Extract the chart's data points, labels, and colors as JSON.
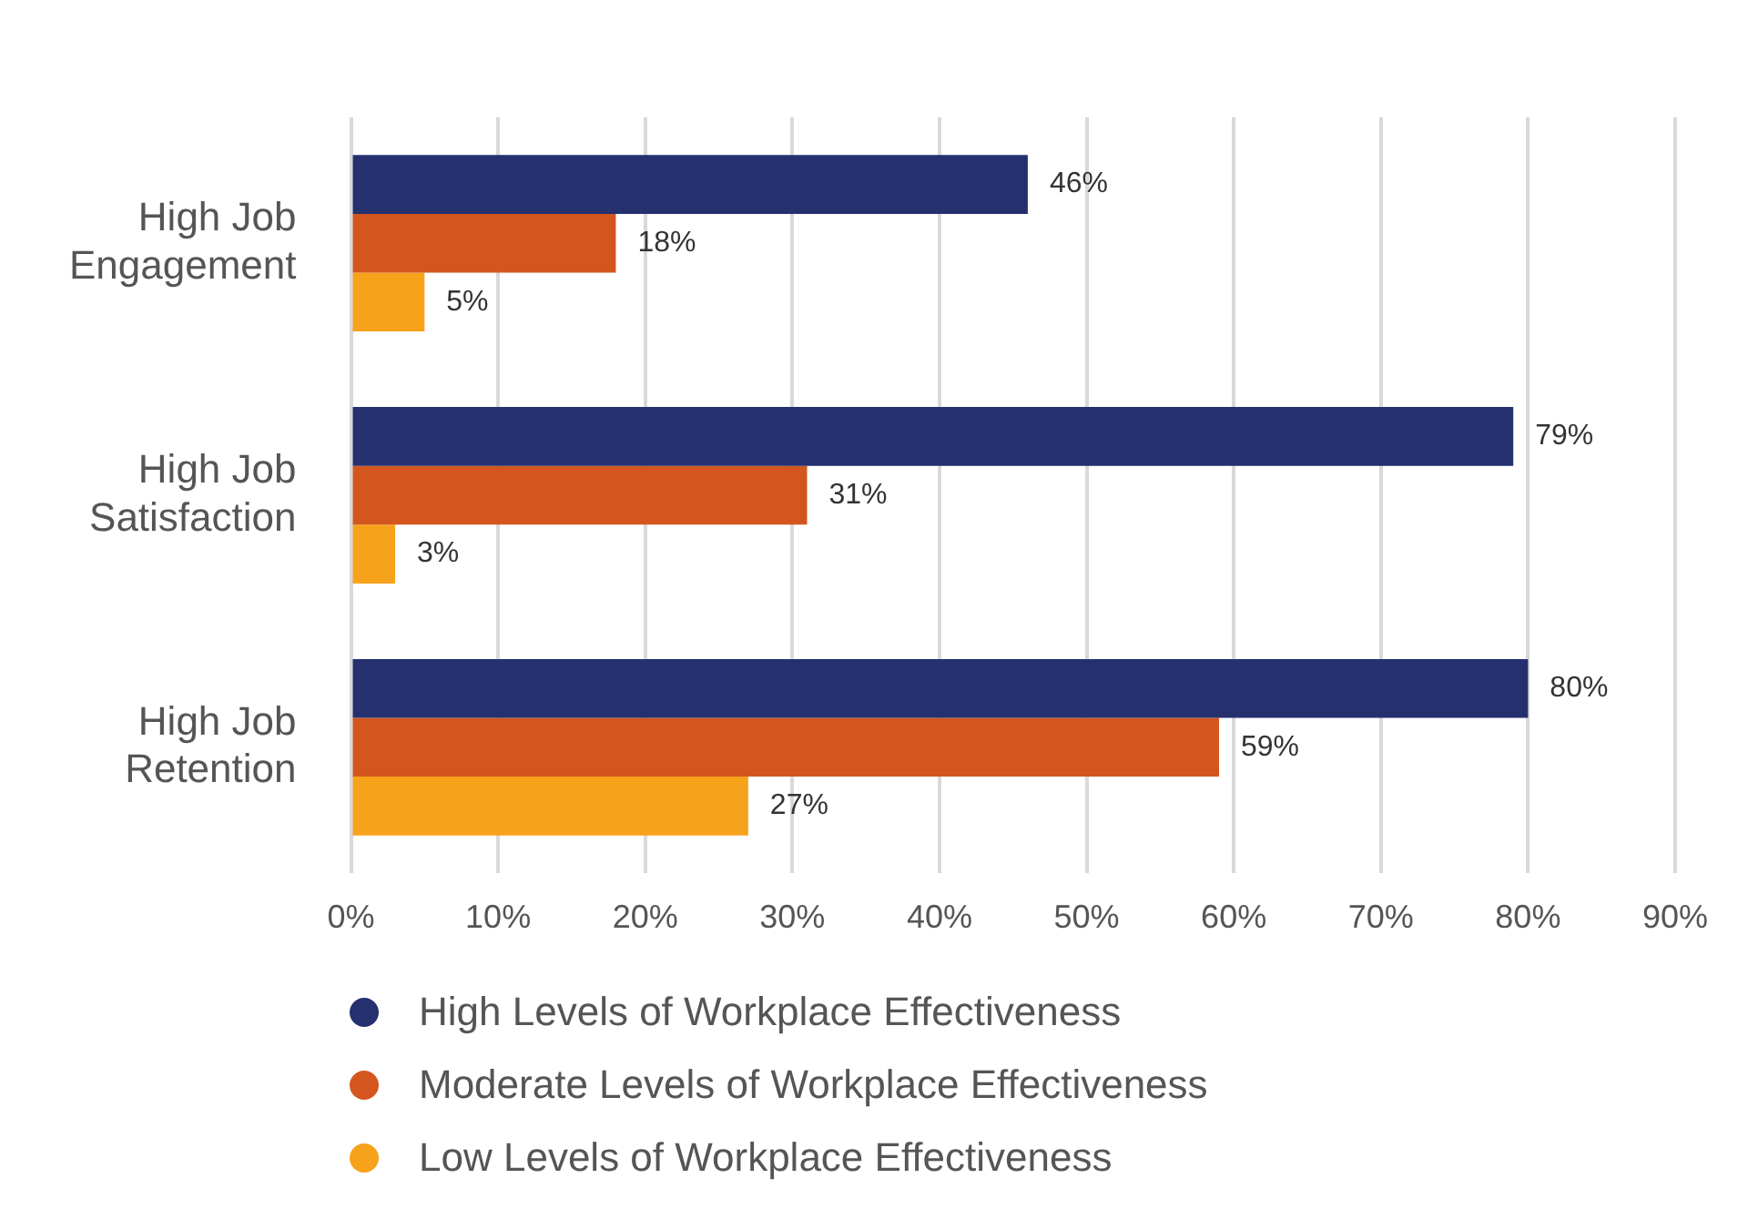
{
  "chart_data": {
    "type": "bar",
    "orientation": "horizontal",
    "categories": [
      "High Job Engagement",
      "High Job Satisfaction",
      "High Job Retention"
    ],
    "series": [
      {
        "name": "High Levels of Workplace Effectiveness",
        "color": "#25306e",
        "values": [
          46,
          79,
          80
        ],
        "value_labels": [
          "46%",
          "79%",
          "80%"
        ]
      },
      {
        "name": "Moderate Levels of Workplace Effectiveness",
        "color": "#d3561f",
        "values": [
          18,
          31,
          59
        ],
        "value_labels": [
          "18%",
          "31%",
          "59%"
        ]
      },
      {
        "name": "Low Levels of Workplace Effectiveness",
        "color": "#f7a21b",
        "values": [
          5,
          3,
          27
        ],
        "value_labels": [
          "5%",
          "3%",
          "27%"
        ]
      }
    ],
    "xlim": [
      0,
      90
    ],
    "xticks": [
      {
        "value": 0,
        "label": "0%"
      },
      {
        "value": 10,
        "label": "10%"
      },
      {
        "value": 20,
        "label": "20%"
      },
      {
        "value": 30,
        "label": "30%"
      },
      {
        "value": 40,
        "label": "40%"
      },
      {
        "value": 50,
        "label": "50%"
      },
      {
        "value": 60,
        "label": "60%"
      },
      {
        "value": 70,
        "label": "70%"
      },
      {
        "value": 80,
        "label": "80%"
      },
      {
        "value": 90,
        "label": "90%"
      }
    ],
    "grid": "x",
    "legend": "bottom",
    "marker": "circle"
  }
}
